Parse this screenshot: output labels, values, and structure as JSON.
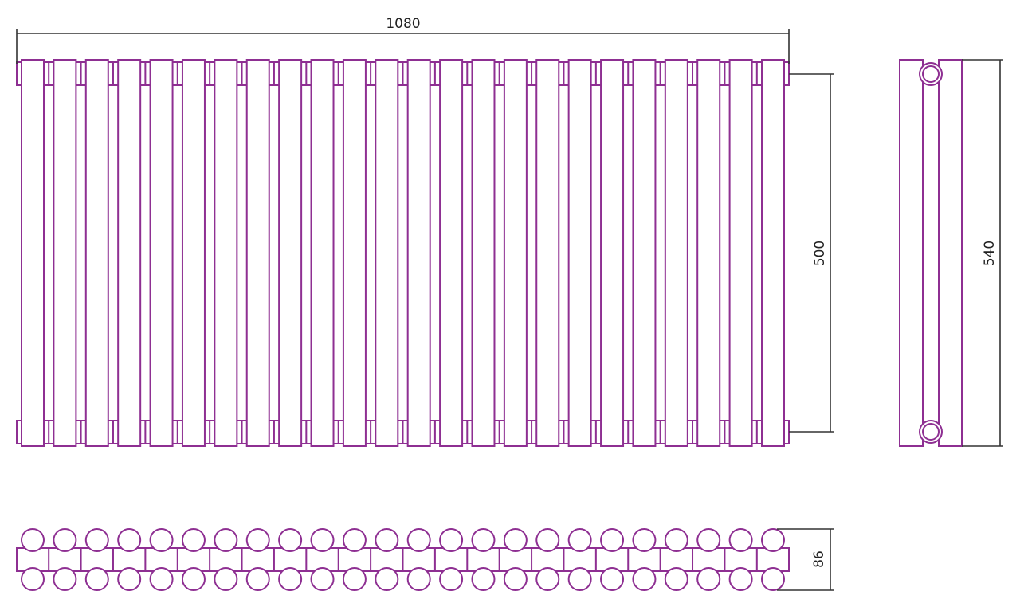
{
  "drawing": {
    "section_count": 24,
    "dimensions": {
      "width": "1080",
      "axis_distance": "500",
      "height": "540",
      "depth": "86"
    },
    "colors": {
      "outline": "#8e2f92",
      "dimension_line": "#333333"
    }
  }
}
